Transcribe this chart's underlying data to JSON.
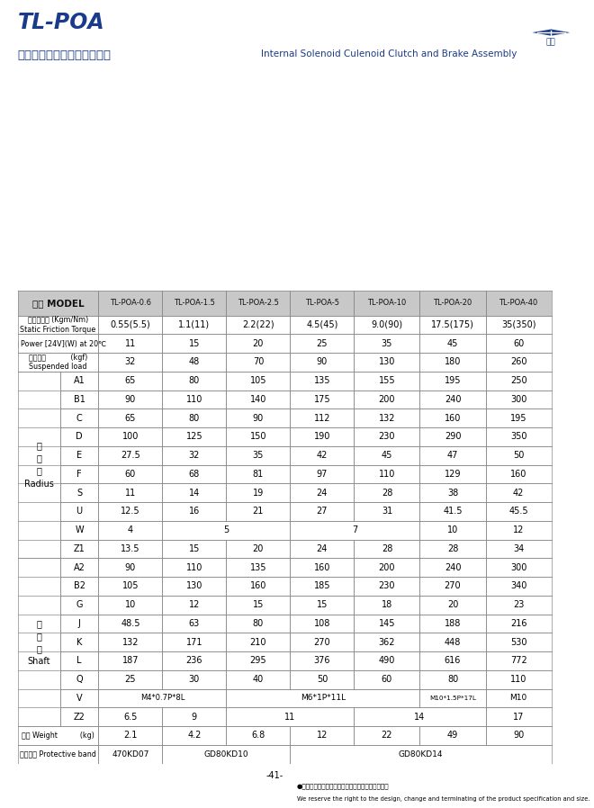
{
  "title_tl": "TL-POA",
  "title_zh": "内藏式電磁離合、煞車器組合",
  "title_en": "Internal Solenoid Culenoid Clutch and Brake Assembly",
  "page_num": "-41-",
  "footer_zh": "●本公司保留產品規格尺寸設計變更或停用之權利。",
  "footer_en": "We reserve the right to the design, change and terminating of the product specification and size.",
  "title_color": "#1a3a8a",
  "models": [
    "TL-POA-0.6",
    "TL-POA-1.5",
    "TL-POA-2.5",
    "TL-POA-5",
    "TL-POA-10",
    "TL-POA-20",
    "TL-POA-40"
  ],
  "rows": [
    {
      "label_zh": "靜度接轉距 (Kgm/Nm)\nStatic Friction Torque",
      "label_col2": "",
      "values": [
        "0.55(5.5)",
        "1.1(11)",
        "2.2(22)",
        "4.5(45)",
        "9.0(90)",
        "17.5(175)",
        "35(350)"
      ],
      "group": null,
      "special": null
    },
    {
      "label_zh": "功率 Power [24V](W) at 20℃",
      "label_col2": "",
      "values": [
        "11",
        "15",
        "20",
        "25",
        "35",
        "45",
        "60"
      ],
      "group": null,
      "special": null
    },
    {
      "label_zh": "懸重負荷           (kgf)\nSuspended load",
      "label_col2": "",
      "values": [
        "32",
        "48",
        "70",
        "90",
        "130",
        "180",
        "260"
      ],
      "group": null,
      "special": null
    },
    {
      "label_zh": "",
      "label_col2": "A1",
      "values": [
        "65",
        "80",
        "105",
        "135",
        "155",
        "195",
        "250"
      ],
      "group": "radius",
      "special": null
    },
    {
      "label_zh": "",
      "label_col2": "B1",
      "values": [
        "90",
        "110",
        "140",
        "175",
        "200",
        "240",
        "300"
      ],
      "group": "radius",
      "special": null
    },
    {
      "label_zh": "",
      "label_col2": "C",
      "values": [
        "65",
        "80",
        "90",
        "112",
        "132",
        "160",
        "195"
      ],
      "group": "radius",
      "special": null
    },
    {
      "label_zh": "",
      "label_col2": "D",
      "values": [
        "100",
        "125",
        "150",
        "190",
        "230",
        "290",
        "350"
      ],
      "group": "radius",
      "special": null
    },
    {
      "label_zh": "",
      "label_col2": "E",
      "values": [
        "27.5",
        "32",
        "35",
        "42",
        "45",
        "47",
        "50"
      ],
      "group": "radius",
      "special": null
    },
    {
      "label_zh": "",
      "label_col2": "F",
      "values": [
        "60",
        "68",
        "81",
        "97",
        "110",
        "129",
        "160"
      ],
      "group": "radius",
      "special": null
    },
    {
      "label_zh": "",
      "label_col2": "S",
      "values": [
        "11",
        "14",
        "19",
        "24",
        "28",
        "38",
        "42"
      ],
      "group": "radius",
      "special": null
    },
    {
      "label_zh": "",
      "label_col2": "U",
      "values": [
        "12.5",
        "16",
        "21",
        "27",
        "31",
        "41.5",
        "45.5"
      ],
      "group": "radius",
      "special": null
    },
    {
      "label_zh": "",
      "label_col2": "W",
      "values": [
        "4",
        "5",
        "5",
        "7",
        "7",
        "10",
        "12"
      ],
      "group": "radius",
      "special": "W"
    },
    {
      "label_zh": "",
      "label_col2": "Z1",
      "values": [
        "13.5",
        "15",
        "20",
        "24",
        "28",
        "28",
        "34"
      ],
      "group": "radius",
      "special": null
    },
    {
      "label_zh": "",
      "label_col2": "A2",
      "values": [
        "90",
        "110",
        "135",
        "160",
        "200",
        "240",
        "300"
      ],
      "group": "shaft",
      "special": null
    },
    {
      "label_zh": "",
      "label_col2": "B2",
      "values": [
        "105",
        "130",
        "160",
        "185",
        "230",
        "270",
        "340"
      ],
      "group": "shaft",
      "special": null
    },
    {
      "label_zh": "",
      "label_col2": "G",
      "values": [
        "10",
        "12",
        "15",
        "15",
        "18",
        "20",
        "23"
      ],
      "group": "shaft",
      "special": null
    },
    {
      "label_zh": "",
      "label_col2": "J",
      "values": [
        "48.5",
        "63",
        "80",
        "108",
        "145",
        "188",
        "216"
      ],
      "group": "shaft",
      "special": null
    },
    {
      "label_zh": "",
      "label_col2": "K",
      "values": [
        "132",
        "171",
        "210",
        "270",
        "362",
        "448",
        "530"
      ],
      "group": "shaft",
      "special": null
    },
    {
      "label_zh": "",
      "label_col2": "L",
      "values": [
        "187",
        "236",
        "295",
        "376",
        "490",
        "616",
        "772"
      ],
      "group": "shaft",
      "special": null
    },
    {
      "label_zh": "",
      "label_col2": "Q",
      "values": [
        "25",
        "30",
        "40",
        "50",
        "60",
        "80",
        "110"
      ],
      "group": "shaft",
      "special": null
    },
    {
      "label_zh": "",
      "label_col2": "V",
      "values": [
        "M4*0.7P*8L",
        "M4*0.7P*8L",
        "M6*1P*11L",
        "M6*1P*11L",
        "M6*1P*11L",
        "M10*1.5P*17L",
        "M10"
      ],
      "group": "shaft",
      "special": "V"
    },
    {
      "label_zh": "",
      "label_col2": "Z2",
      "values": [
        "6.5",
        "9",
        "11",
        "11",
        "14",
        "14",
        "17"
      ],
      "group": "shaft",
      "special": "Z2"
    },
    {
      "label_zh": "重量 Weight          (kg)",
      "label_col2": "",
      "values": [
        "2.1",
        "4.2",
        "6.8",
        "12",
        "22",
        "49",
        "90"
      ],
      "group": null,
      "special": null
    },
    {
      "label_zh": "保護素子 Protective band",
      "label_col2": "",
      "values": [
        "470KD07",
        "GD80KD10",
        "GD80KD10",
        "GD80KD14",
        "GD80KD14",
        "GD80KD14",
        "GD80KD14"
      ],
      "group": null,
      "special": "band"
    }
  ],
  "radius_group_label": "徑\n方\n向\nRadius",
  "shaft_group_label": "軸\n方\n向\nShaft"
}
